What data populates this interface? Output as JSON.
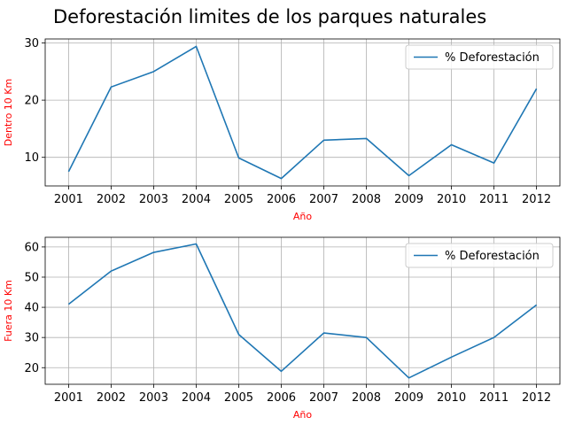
{
  "figure_title": "Deforestación limites de los parques naturales",
  "chart_data": [
    {
      "type": "line",
      "title": "",
      "xlabel": "Año",
      "ylabel": "Dentro 10 Km",
      "label_color": "#ff0000",
      "line_color": "#1f77b4",
      "grid": true,
      "legend_position": "upper-right",
      "categories": [
        "2001",
        "2002",
        "2003",
        "2004",
        "2005",
        "2006",
        "2007",
        "2008",
        "2009",
        "2010",
        "2011",
        "2012"
      ],
      "series": [
        {
          "name": "% Deforestación",
          "values": [
            7.5,
            22.3,
            25.0,
            29.4,
            9.9,
            6.3,
            13.0,
            13.3,
            6.8,
            12.2,
            9.0,
            22.0
          ]
        }
      ],
      "yticks": [
        10,
        20,
        30
      ],
      "ylim": [
        5,
        30.7
      ]
    },
    {
      "type": "line",
      "title": "",
      "xlabel": "Año",
      "ylabel": "Fuera 10 Km",
      "label_color": "#ff0000",
      "line_color": "#1f77b4",
      "grid": true,
      "legend_position": "upper-right",
      "categories": [
        "2001",
        "2002",
        "2003",
        "2004",
        "2005",
        "2006",
        "2007",
        "2008",
        "2009",
        "2010",
        "2011",
        "2012"
      ],
      "series": [
        {
          "name": "% Deforestación",
          "values": [
            41.0,
            52.0,
            58.2,
            61.0,
            31.0,
            18.8,
            31.5,
            30.0,
            16.6,
            23.5,
            30.0,
            40.8
          ]
        }
      ],
      "yticks": [
        20,
        30,
        40,
        50,
        60
      ],
      "ylim": [
        14.5,
        63.2
      ]
    }
  ]
}
